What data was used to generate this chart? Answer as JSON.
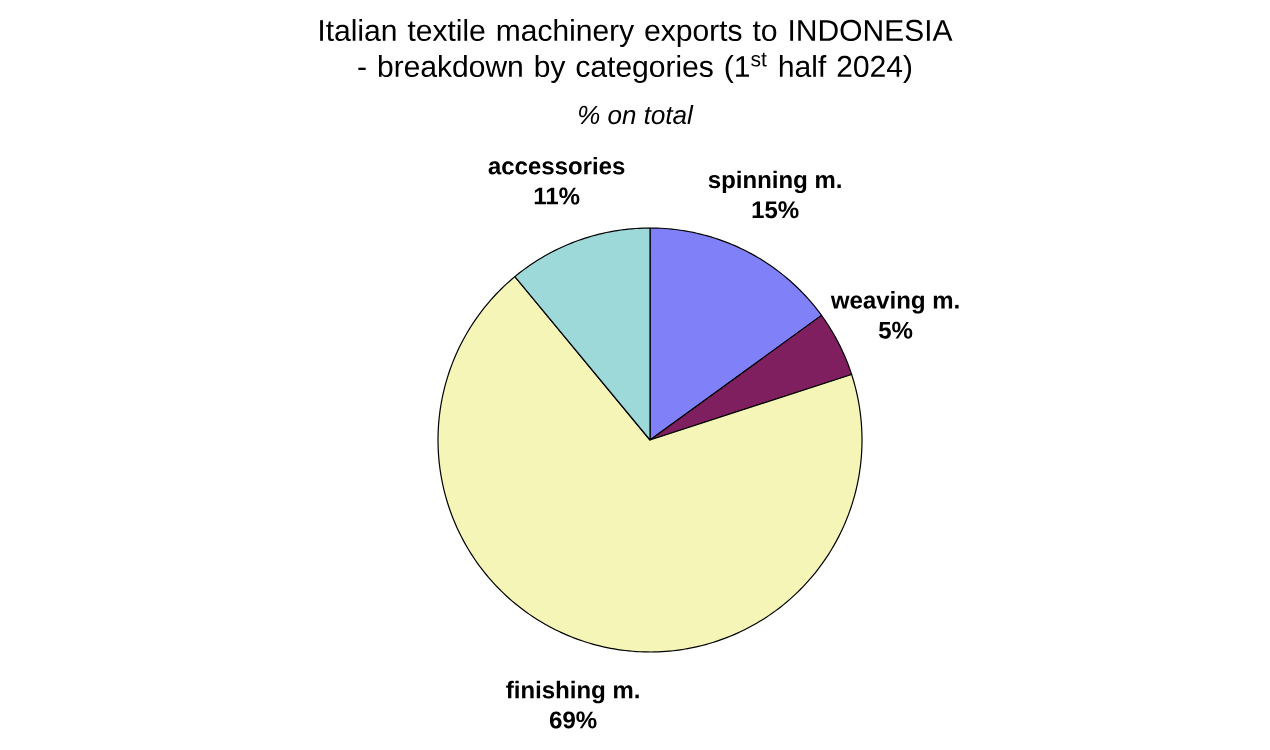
{
  "chart_data": {
    "type": "pie",
    "title": "Italian textile machinery exports to INDONESIA - breakdown by categories (1$^{st}$ half 2024)",
    "subtitle": "% on total",
    "categories": [
      "spinning m.",
      "weaving m.",
      "finishing m.",
      "accessories"
    ],
    "values": [
      15,
      5,
      69,
      11
    ],
    "colors": [
      "#8080f8",
      "#7f1f5f",
      "#f5f5b8",
      "#9ed9d9"
    ],
    "value_labels": [
      "15%",
      "5%",
      "69%",
      "11%"
    ]
  }
}
